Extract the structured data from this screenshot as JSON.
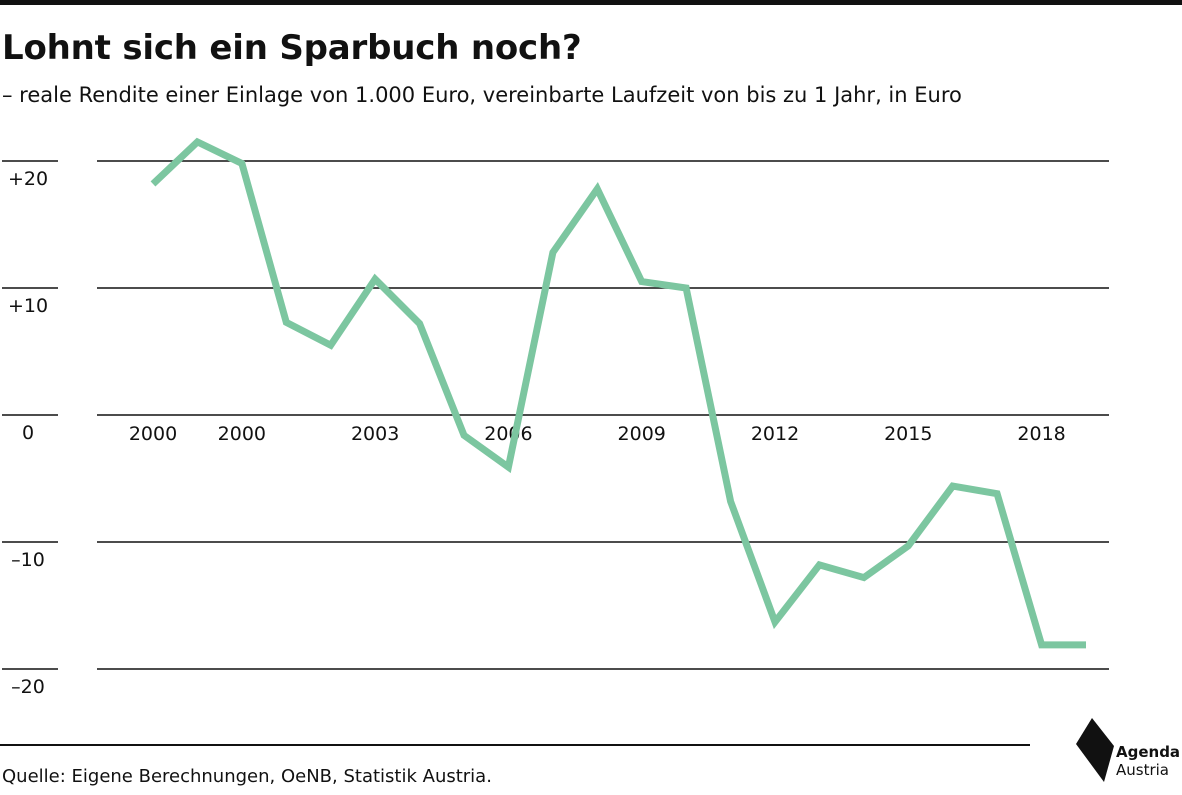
{
  "header": {
    "title": "Lohnt sich ein Sparbuch noch?",
    "subtitle": "– reale Rendite einer Einlage von 1.000 Euro, vereinbarte Laufzeit von bis zu 1 Jahr, in Euro"
  },
  "footer": {
    "source": "Quelle: Eigene Berechnungen, OeNB, Statistik Austria.",
    "logo_line1": "Agenda",
    "logo_line2": "Austria"
  },
  "chart_data": {
    "type": "line",
    "title": "Lohnt sich ein Sparbuch noch?",
    "subtitle": "– reale Rendite einer Einlage von 1.000 Euro, vereinbarte Laufzeit von bis zu 1 Jahr, in Euro",
    "xlabel": "",
    "ylabel": "",
    "ylim": [
      -20,
      20
    ],
    "y_ticks": [
      20,
      10,
      0,
      -10,
      -20
    ],
    "y_tick_labels": [
      "+20",
      "+10",
      "0",
      "–10",
      "–20"
    ],
    "grid": true,
    "legend": "none",
    "line_color": "#7cc6a0",
    "x_tick_labels": [
      {
        "index": 0,
        "label": "2000"
      },
      {
        "index": 2,
        "label": "2000"
      },
      {
        "index": 5,
        "label": "2003"
      },
      {
        "index": 8,
        "label": "2006"
      },
      {
        "index": 11,
        "label": "2009"
      },
      {
        "index": 14,
        "label": "2012"
      },
      {
        "index": 17,
        "label": "2015"
      },
      {
        "index": 20,
        "label": "2018"
      }
    ],
    "series": [
      {
        "values": [
          18.2,
          21.5,
          19.8,
          7.3,
          5.5,
          10.7,
          7.2,
          -1.6,
          -4.1,
          12.8,
          17.8,
          10.5,
          10.0,
          -6.8,
          -16.3,
          -11.8,
          -12.8,
          -10.3,
          -5.6,
          -6.2,
          -18.1,
          -18.1
        ]
      }
    ]
  }
}
